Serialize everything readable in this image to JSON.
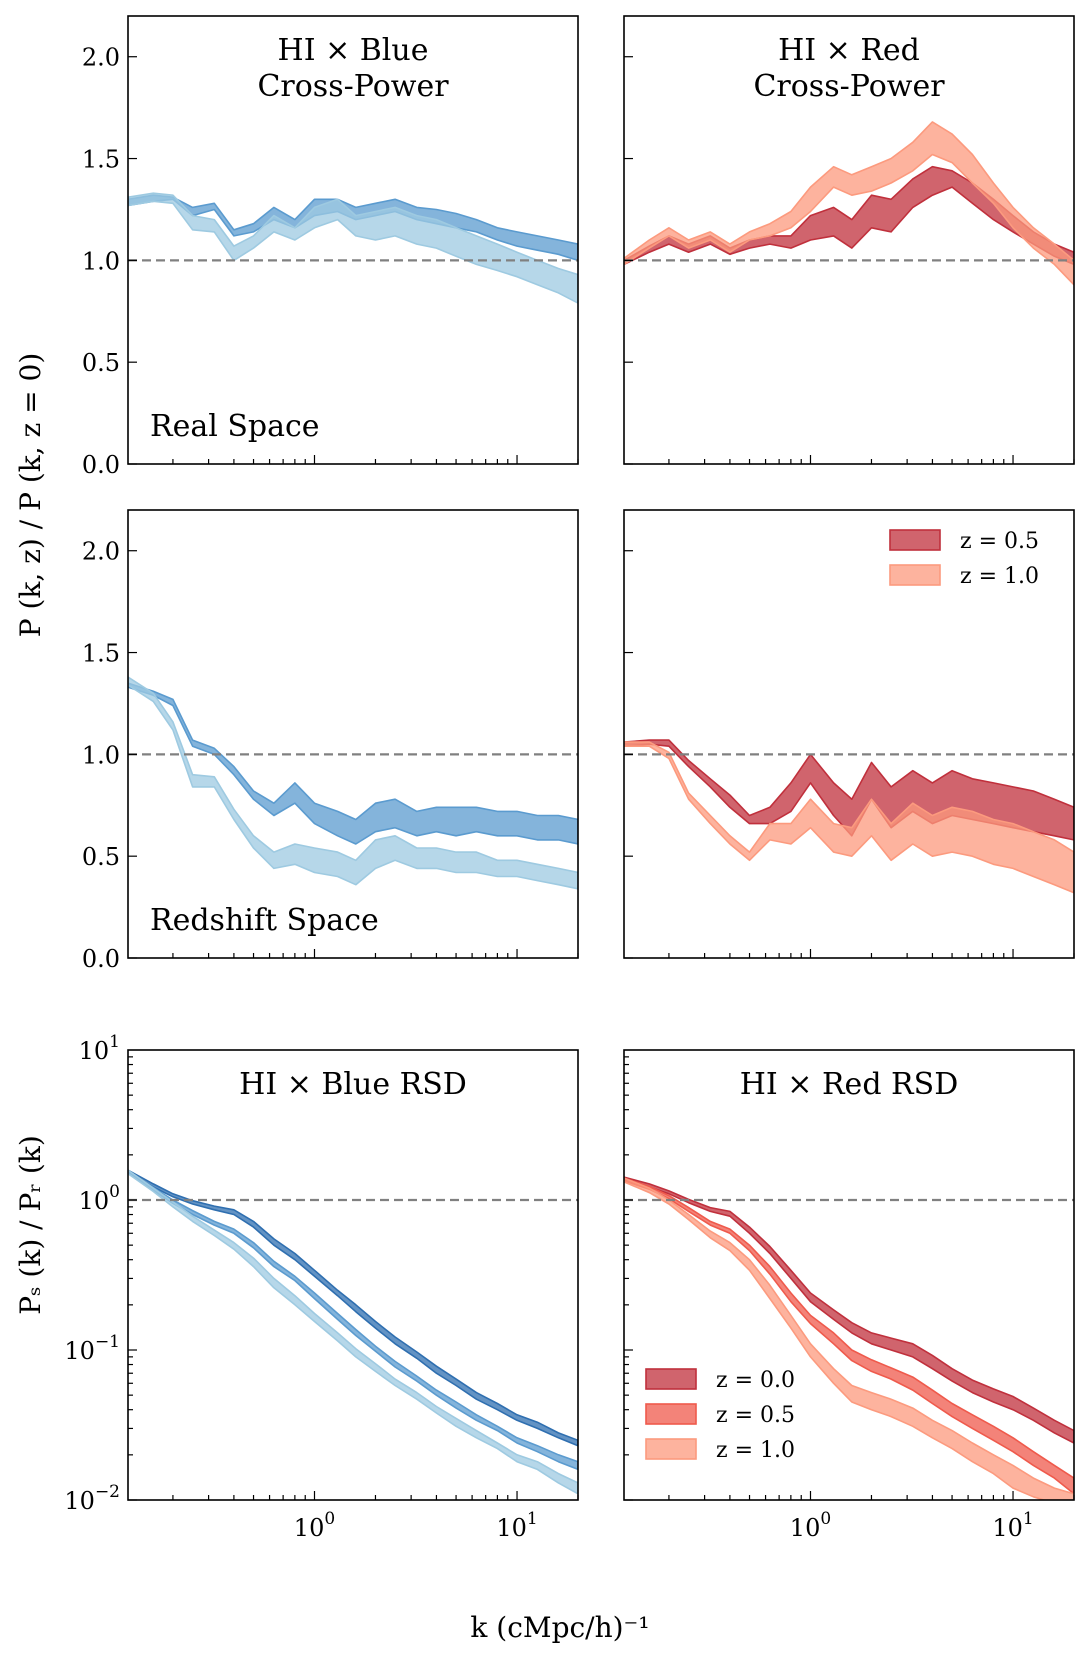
{
  "figure": {
    "xlabel": "k (cMpc/h)⁻¹",
    "ylabel_top": "P (k, z) / P (k, z = 0)",
    "ylabel_bottom": "Pₛ (k) / Pᵣ (k)"
  },
  "colors": {
    "blue_z0": "#2f6fb0",
    "blue_z05": "#5b9bcf",
    "blue_z10": "#9ecae1",
    "red_z0": "#c0303c",
    "red_z05": "#ef5a4c",
    "red_z10": "#fc9a7e",
    "reference_line": "#808080"
  },
  "chart_data": [
    {
      "id": "blue-real",
      "type": "area",
      "title": "HI × Blue\nCross-Power",
      "annotation": "Real Space",
      "xscale": "log",
      "xlim": [
        0.12,
        20
      ],
      "yscale": "linear",
      "ylim": [
        0,
        2.2
      ],
      "yticks": [
        "0.0",
        "0.5",
        "1.0",
        "1.5",
        "2.0"
      ],
      "yticklabels_visible": true,
      "xticklabels_visible": false,
      "reference_y": 1.0,
      "x": [
        0.12,
        0.16,
        0.2,
        0.25,
        0.32,
        0.4,
        0.5,
        0.63,
        0.8,
        1.0,
        1.3,
        1.6,
        2.0,
        2.5,
        3.2,
        4.0,
        5.0,
        6.3,
        8.0,
        10.0,
        12.6,
        16.0,
        20.0
      ],
      "series": [
        {
          "name": "z = 0.5",
          "color": "blue_z05",
          "lower": [
            1.27,
            1.29,
            1.3,
            1.22,
            1.25,
            1.12,
            1.14,
            1.2,
            1.16,
            1.22,
            1.24,
            1.2,
            1.22,
            1.24,
            1.2,
            1.18,
            1.16,
            1.14,
            1.1,
            1.07,
            1.05,
            1.03,
            1.0
          ],
          "upper": [
            1.3,
            1.32,
            1.31,
            1.26,
            1.28,
            1.15,
            1.18,
            1.26,
            1.2,
            1.3,
            1.3,
            1.26,
            1.28,
            1.3,
            1.26,
            1.25,
            1.23,
            1.2,
            1.16,
            1.14,
            1.12,
            1.1,
            1.08
          ]
        },
        {
          "name": "z = 1.0",
          "color": "blue_z10",
          "lower": [
            1.27,
            1.29,
            1.28,
            1.15,
            1.14,
            1.0,
            1.06,
            1.14,
            1.1,
            1.16,
            1.2,
            1.12,
            1.1,
            1.12,
            1.08,
            1.06,
            1.02,
            0.98,
            0.95,
            0.92,
            0.88,
            0.84,
            0.79
          ],
          "upper": [
            1.31,
            1.33,
            1.32,
            1.22,
            1.2,
            1.07,
            1.12,
            1.22,
            1.16,
            1.26,
            1.3,
            1.22,
            1.24,
            1.26,
            1.22,
            1.2,
            1.16,
            1.12,
            1.08,
            1.04,
            1.0,
            0.96,
            0.93
          ]
        }
      ]
    },
    {
      "id": "red-real",
      "type": "area",
      "title": "HI × Red\nCross-Power",
      "xscale": "log",
      "xlim": [
        0.12,
        20
      ],
      "yscale": "linear",
      "ylim": [
        0,
        2.2
      ],
      "yticklabels_visible": false,
      "xticklabels_visible": false,
      "reference_y": 1.0,
      "x": [
        0.12,
        0.16,
        0.2,
        0.25,
        0.32,
        0.4,
        0.5,
        0.63,
        0.8,
        1.0,
        1.3,
        1.6,
        2.0,
        2.5,
        3.2,
        4.0,
        5.0,
        6.3,
        8.0,
        10.0,
        12.6,
        16.0,
        20.0
      ],
      "series": [
        {
          "name": "z = 0.5",
          "color": "red_z0",
          "lower": [
            0.98,
            1.04,
            1.08,
            1.04,
            1.08,
            1.03,
            1.06,
            1.08,
            1.06,
            1.1,
            1.12,
            1.06,
            1.16,
            1.14,
            1.26,
            1.32,
            1.36,
            1.28,
            1.2,
            1.14,
            1.08,
            1.02,
            0.98
          ],
          "upper": [
            1.0,
            1.07,
            1.12,
            1.08,
            1.12,
            1.06,
            1.1,
            1.12,
            1.12,
            1.22,
            1.26,
            1.2,
            1.32,
            1.3,
            1.4,
            1.46,
            1.44,
            1.38,
            1.3,
            1.22,
            1.14,
            1.08,
            1.04
          ]
        },
        {
          "name": "z = 1.0",
          "color": "red_z10",
          "lower": [
            0.98,
            1.06,
            1.12,
            1.06,
            1.1,
            1.04,
            1.1,
            1.12,
            1.16,
            1.24,
            1.36,
            1.32,
            1.34,
            1.38,
            1.44,
            1.52,
            1.48,
            1.38,
            1.28,
            1.16,
            1.06,
            0.98,
            0.88
          ],
          "upper": [
            1.01,
            1.1,
            1.16,
            1.1,
            1.14,
            1.08,
            1.14,
            1.18,
            1.24,
            1.36,
            1.46,
            1.42,
            1.46,
            1.5,
            1.58,
            1.68,
            1.62,
            1.52,
            1.38,
            1.26,
            1.16,
            1.08,
            1.0
          ]
        }
      ]
    },
    {
      "id": "blue-redshift",
      "type": "area",
      "annotation": "Redshift Space",
      "xscale": "log",
      "xlim": [
        0.12,
        20
      ],
      "yscale": "linear",
      "ylim": [
        0,
        2.2
      ],
      "yticks": [
        "0.0",
        "0.5",
        "1.0",
        "1.5",
        "2.0"
      ],
      "yticklabels_visible": true,
      "xticklabels_visible": false,
      "reference_y": 1.0,
      "x": [
        0.12,
        0.16,
        0.2,
        0.25,
        0.32,
        0.4,
        0.5,
        0.63,
        0.8,
        1.0,
        1.3,
        1.6,
        2.0,
        2.5,
        3.2,
        4.0,
        5.0,
        6.3,
        8.0,
        10.0,
        12.6,
        16.0,
        20.0
      ],
      "series": [
        {
          "name": "z = 0.5",
          "color": "blue_z05",
          "lower": [
            1.33,
            1.29,
            1.24,
            1.04,
            1.0,
            0.9,
            0.78,
            0.7,
            0.76,
            0.66,
            0.6,
            0.56,
            0.62,
            0.64,
            0.6,
            0.62,
            0.6,
            0.62,
            0.6,
            0.6,
            0.58,
            0.58,
            0.56
          ],
          "upper": [
            1.35,
            1.31,
            1.27,
            1.07,
            1.03,
            0.94,
            0.82,
            0.76,
            0.86,
            0.76,
            0.72,
            0.68,
            0.76,
            0.78,
            0.72,
            0.74,
            0.74,
            0.74,
            0.72,
            0.72,
            0.7,
            0.7,
            0.68
          ]
        },
        {
          "name": "z = 1.0",
          "color": "blue_z10",
          "lower": [
            1.34,
            1.26,
            1.12,
            0.84,
            0.84,
            0.68,
            0.54,
            0.44,
            0.46,
            0.42,
            0.4,
            0.36,
            0.44,
            0.48,
            0.44,
            0.44,
            0.42,
            0.42,
            0.4,
            0.4,
            0.38,
            0.36,
            0.34
          ],
          "upper": [
            1.38,
            1.3,
            1.16,
            0.9,
            0.89,
            0.73,
            0.6,
            0.52,
            0.56,
            0.54,
            0.52,
            0.48,
            0.58,
            0.6,
            0.54,
            0.54,
            0.52,
            0.52,
            0.48,
            0.48,
            0.46,
            0.44,
            0.42
          ]
        }
      ]
    },
    {
      "id": "red-redshift",
      "type": "area",
      "xscale": "log",
      "xlim": [
        0.12,
        20
      ],
      "yscale": "linear",
      "ylim": [
        0,
        2.2
      ],
      "yticklabels_visible": false,
      "xticklabels_visible": false,
      "reference_y": 1.0,
      "legend": {
        "placement": "top-right",
        "entries": [
          {
            "label": "z = 0.5",
            "color": "red_z0"
          },
          {
            "label": "z = 1.0",
            "color": "red_z10"
          }
        ]
      },
      "x": [
        0.12,
        0.16,
        0.2,
        0.25,
        0.32,
        0.4,
        0.5,
        0.63,
        0.8,
        1.0,
        1.3,
        1.6,
        2.0,
        2.5,
        3.2,
        4.0,
        5.0,
        6.3,
        8.0,
        10.0,
        12.6,
        16.0,
        20.0
      ],
      "series": [
        {
          "name": "z = 0.5",
          "color": "red_z0",
          "lower": [
            1.04,
            1.05,
            1.04,
            0.94,
            0.84,
            0.74,
            0.66,
            0.66,
            0.72,
            0.86,
            0.7,
            0.6,
            0.78,
            0.64,
            0.72,
            0.66,
            0.7,
            0.68,
            0.66,
            0.64,
            0.62,
            0.6,
            0.58
          ],
          "upper": [
            1.06,
            1.07,
            1.07,
            0.97,
            0.88,
            0.8,
            0.7,
            0.74,
            0.86,
            1.0,
            0.86,
            0.78,
            0.96,
            0.84,
            0.92,
            0.86,
            0.92,
            0.88,
            0.86,
            0.84,
            0.82,
            0.78,
            0.74
          ]
        },
        {
          "name": "z = 1.0",
          "color": "red_z10",
          "lower": [
            1.04,
            1.04,
            0.98,
            0.78,
            0.66,
            0.56,
            0.48,
            0.58,
            0.56,
            0.64,
            0.52,
            0.5,
            0.6,
            0.48,
            0.56,
            0.5,
            0.52,
            0.5,
            0.46,
            0.44,
            0.4,
            0.36,
            0.32
          ],
          "upper": [
            1.06,
            1.06,
            1.01,
            0.81,
            0.7,
            0.6,
            0.52,
            0.66,
            0.66,
            0.78,
            0.66,
            0.64,
            0.78,
            0.66,
            0.76,
            0.7,
            0.74,
            0.72,
            0.68,
            0.66,
            0.62,
            0.58,
            0.52
          ]
        }
      ]
    },
    {
      "id": "blue-rsd",
      "type": "area",
      "title": "HI × Blue RSD",
      "xscale": "log",
      "xlim": [
        0.12,
        20
      ],
      "yscale": "log",
      "ylim": [
        0.01,
        10
      ],
      "yticks": [
        "10^{-2}",
        "10^{-1}",
        "10^{0}",
        "10^{1}"
      ],
      "xticks": [
        "10^{0}",
        "10^{1}"
      ],
      "yticklabels_visible": true,
      "xticklabels_visible": true,
      "reference_y": 1.0,
      "x": [
        0.12,
        0.16,
        0.2,
        0.25,
        0.32,
        0.4,
        0.5,
        0.63,
        0.8,
        1.0,
        1.3,
        1.6,
        2.0,
        2.5,
        3.2,
        4.0,
        5.0,
        6.3,
        8.0,
        10.0,
        12.6,
        16.0,
        20.0
      ],
      "series": [
        {
          "name": "z = 0.0",
          "color": "blue_z0",
          "lower": [
            1.52,
            1.22,
            1.05,
            0.94,
            0.86,
            0.8,
            0.66,
            0.5,
            0.4,
            0.31,
            0.23,
            0.18,
            0.14,
            0.11,
            0.088,
            0.07,
            0.058,
            0.047,
            0.04,
            0.034,
            0.03,
            0.026,
            0.023
          ],
          "upper": [
            1.58,
            1.28,
            1.1,
            0.99,
            0.91,
            0.86,
            0.72,
            0.55,
            0.44,
            0.34,
            0.25,
            0.2,
            0.155,
            0.122,
            0.097,
            0.078,
            0.064,
            0.052,
            0.044,
            0.037,
            0.033,
            0.028,
            0.025
          ]
        },
        {
          "name": "z = 0.5",
          "color": "blue_z05",
          "lower": [
            1.5,
            1.16,
            0.95,
            0.8,
            0.68,
            0.6,
            0.48,
            0.36,
            0.29,
            0.22,
            0.16,
            0.125,
            0.098,
            0.077,
            0.062,
            0.05,
            0.041,
            0.034,
            0.029,
            0.024,
            0.021,
            0.018,
            0.016
          ],
          "upper": [
            1.56,
            1.21,
            1.0,
            0.85,
            0.72,
            0.64,
            0.52,
            0.39,
            0.31,
            0.24,
            0.175,
            0.137,
            0.106,
            0.084,
            0.067,
            0.054,
            0.045,
            0.037,
            0.031,
            0.026,
            0.023,
            0.02,
            0.018
          ]
        },
        {
          "name": "z = 1.0",
          "color": "blue_z10",
          "lower": [
            1.5,
            1.14,
            0.9,
            0.72,
            0.58,
            0.47,
            0.36,
            0.26,
            0.2,
            0.155,
            0.115,
            0.09,
            0.072,
            0.058,
            0.047,
            0.038,
            0.031,
            0.026,
            0.022,
            0.018,
            0.016,
            0.013,
            0.011
          ],
          "upper": [
            1.58,
            1.2,
            0.97,
            0.78,
            0.63,
            0.52,
            0.41,
            0.3,
            0.23,
            0.175,
            0.13,
            0.102,
            0.081,
            0.064,
            0.052,
            0.042,
            0.035,
            0.029,
            0.024,
            0.02,
            0.018,
            0.015,
            0.013
          ]
        }
      ]
    },
    {
      "id": "red-rsd",
      "type": "area",
      "title": "HI × Red RSD",
      "xscale": "log",
      "xlim": [
        0.12,
        20
      ],
      "yscale": "log",
      "ylim": [
        0.01,
        10
      ],
      "xticks": [
        "10^{0}",
        "10^{1}"
      ],
      "yticklabels_visible": false,
      "xticklabels_visible": true,
      "reference_y": 1.0,
      "legend": {
        "placement": "bottom-left",
        "entries": [
          {
            "label": "z = 0.0",
            "color": "red_z0"
          },
          {
            "label": "z = 0.5",
            "color": "red_z05"
          },
          {
            "label": "z = 1.0",
            "color": "red_z10"
          }
        ]
      },
      "x": [
        0.12,
        0.16,
        0.2,
        0.25,
        0.32,
        0.4,
        0.5,
        0.63,
        0.8,
        1.0,
        1.3,
        1.6,
        2.0,
        2.5,
        3.2,
        4.0,
        5.0,
        6.3,
        8.0,
        10.0,
        12.6,
        16.0,
        20.0
      ],
      "series": [
        {
          "name": "z = 0.0",
          "color": "red_z0",
          "lower": [
            1.36,
            1.22,
            1.1,
            0.96,
            0.84,
            0.78,
            0.6,
            0.44,
            0.3,
            0.21,
            0.16,
            0.13,
            0.11,
            0.1,
            0.09,
            0.075,
            0.062,
            0.052,
            0.045,
            0.04,
            0.034,
            0.028,
            0.024
          ],
          "upper": [
            1.42,
            1.28,
            1.15,
            1.01,
            0.89,
            0.84,
            0.66,
            0.49,
            0.34,
            0.24,
            0.185,
            0.152,
            0.13,
            0.12,
            0.11,
            0.092,
            0.075,
            0.063,
            0.055,
            0.049,
            0.041,
            0.034,
            0.029
          ]
        },
        {
          "name": "z = 0.5",
          "color": "red_z05",
          "lower": [
            1.34,
            1.18,
            1.02,
            0.84,
            0.68,
            0.6,
            0.46,
            0.32,
            0.21,
            0.15,
            0.11,
            0.085,
            0.072,
            0.064,
            0.054,
            0.044,
            0.036,
            0.03,
            0.025,
            0.021,
            0.017,
            0.014,
            0.011
          ],
          "upper": [
            1.4,
            1.23,
            1.07,
            0.89,
            0.72,
            0.64,
            0.5,
            0.36,
            0.24,
            0.17,
            0.13,
            0.1,
            0.086,
            0.076,
            0.066,
            0.054,
            0.044,
            0.037,
            0.031,
            0.026,
            0.021,
            0.017,
            0.014
          ]
        },
        {
          "name": "z = 1.0",
          "color": "red_z10",
          "lower": [
            1.32,
            1.12,
            0.94,
            0.74,
            0.56,
            0.46,
            0.34,
            0.22,
            0.14,
            0.09,
            0.06,
            0.045,
            0.04,
            0.036,
            0.031,
            0.026,
            0.022,
            0.018,
            0.015,
            0.012,
            0.0105,
            0.0095,
            0.009
          ],
          "upper": [
            1.4,
            1.2,
            1.0,
            0.8,
            0.62,
            0.52,
            0.4,
            0.27,
            0.17,
            0.11,
            0.075,
            0.058,
            0.052,
            0.047,
            0.041,
            0.034,
            0.029,
            0.024,
            0.02,
            0.017,
            0.014,
            0.012,
            0.011
          ]
        }
      ]
    }
  ]
}
